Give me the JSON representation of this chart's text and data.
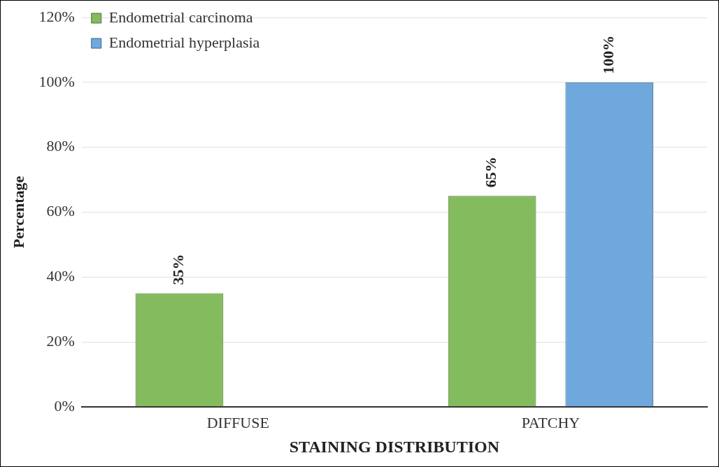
{
  "chart_data": {
    "type": "bar",
    "xlabel": "STAINING DISTRIBUTION",
    "ylabel": "Percentage",
    "categories": [
      "DIFFUSE",
      "PATCHY"
    ],
    "series": [
      {
        "name": "Endometrial carcinoma",
        "color": "#84bb5f",
        "values": [
          35,
          65
        ],
        "value_labels": [
          "35%",
          "65%"
        ]
      },
      {
        "name": "Endometrial hyperplasia",
        "color": "#6fa8dc",
        "values": [
          0,
          100
        ],
        "value_labels": [
          null,
          "100%"
        ]
      }
    ],
    "ylim": [
      0,
      120
    ],
    "yticks": [
      {
        "value": 0,
        "label": "0%"
      },
      {
        "value": 20,
        "label": "20%"
      },
      {
        "value": 40,
        "label": "40%"
      },
      {
        "value": 60,
        "label": "60%"
      },
      {
        "value": 80,
        "label": "80%"
      },
      {
        "value": 100,
        "label": "100%"
      },
      {
        "value": 120,
        "label": "120%"
      }
    ],
    "grid": "y",
    "legend": "top left"
  }
}
